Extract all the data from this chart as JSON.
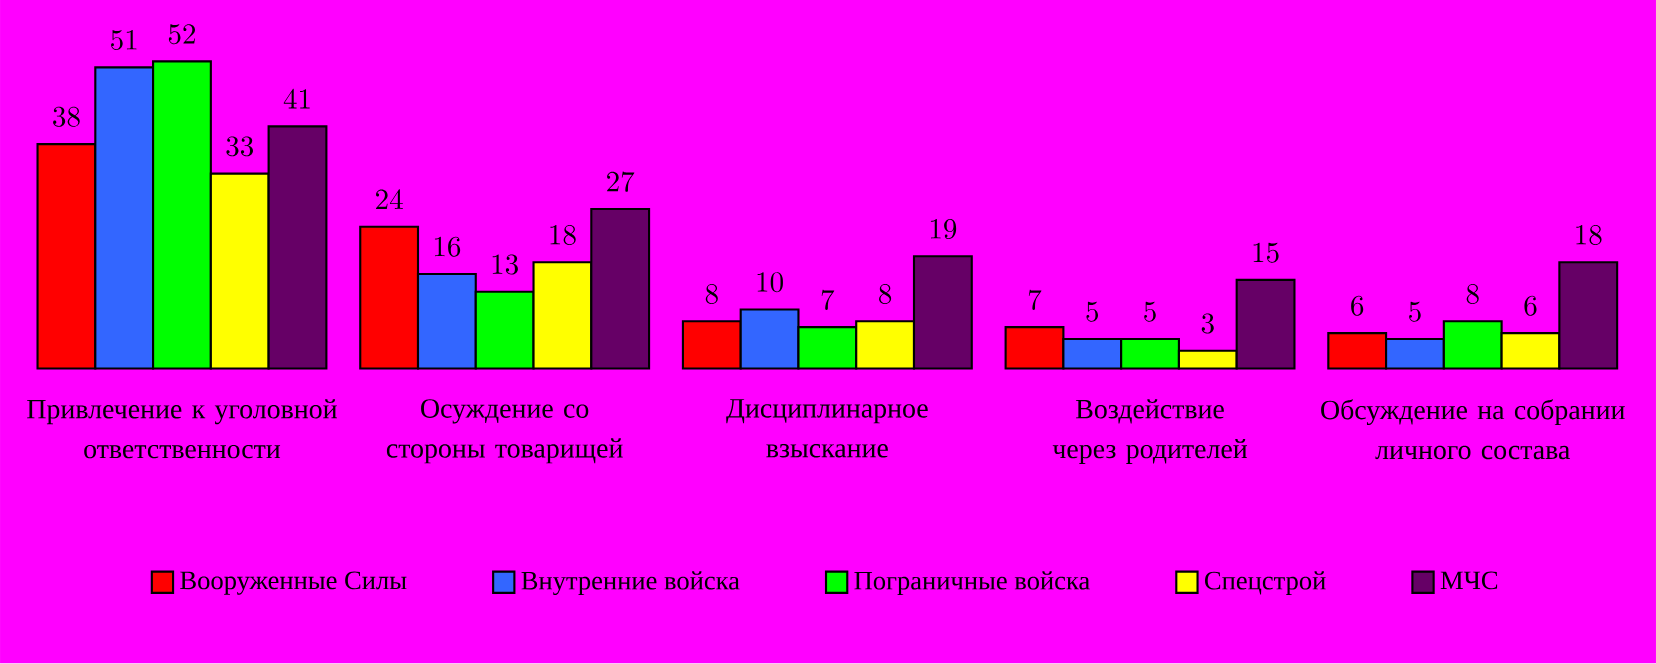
{
  "chart_data": {
    "type": "bar",
    "categories": [
      "Привлечение к уголовной ответственности",
      "Осуждение со стороны товарищей",
      "Дисциплинарное взыскание",
      "Воздействие через родителей",
      "Обсуждение на собрании личного состава"
    ],
    "series": [
      {
        "name": "Вооруженные Силы",
        "color": "#ff0000",
        "values": [
          38,
          24,
          8,
          7,
          6
        ]
      },
      {
        "name": "Внутренние войска",
        "color": "#3366ff",
        "values": [
          51,
          16,
          10,
          5,
          5
        ]
      },
      {
        "name": "Пограничные войска",
        "color": "#00ff00",
        "values": [
          52,
          13,
          7,
          5,
          8
        ]
      },
      {
        "name": "Спецстрой",
        "color": "#ffff00",
        "values": [
          33,
          18,
          8,
          3,
          6
        ]
      },
      {
        "name": "МЧС",
        "color": "#660066",
        "values": [
          41,
          27,
          19,
          15,
          18
        ]
      }
    ],
    "data_labels": true,
    "legend": "bottom",
    "grid": false
  }
}
